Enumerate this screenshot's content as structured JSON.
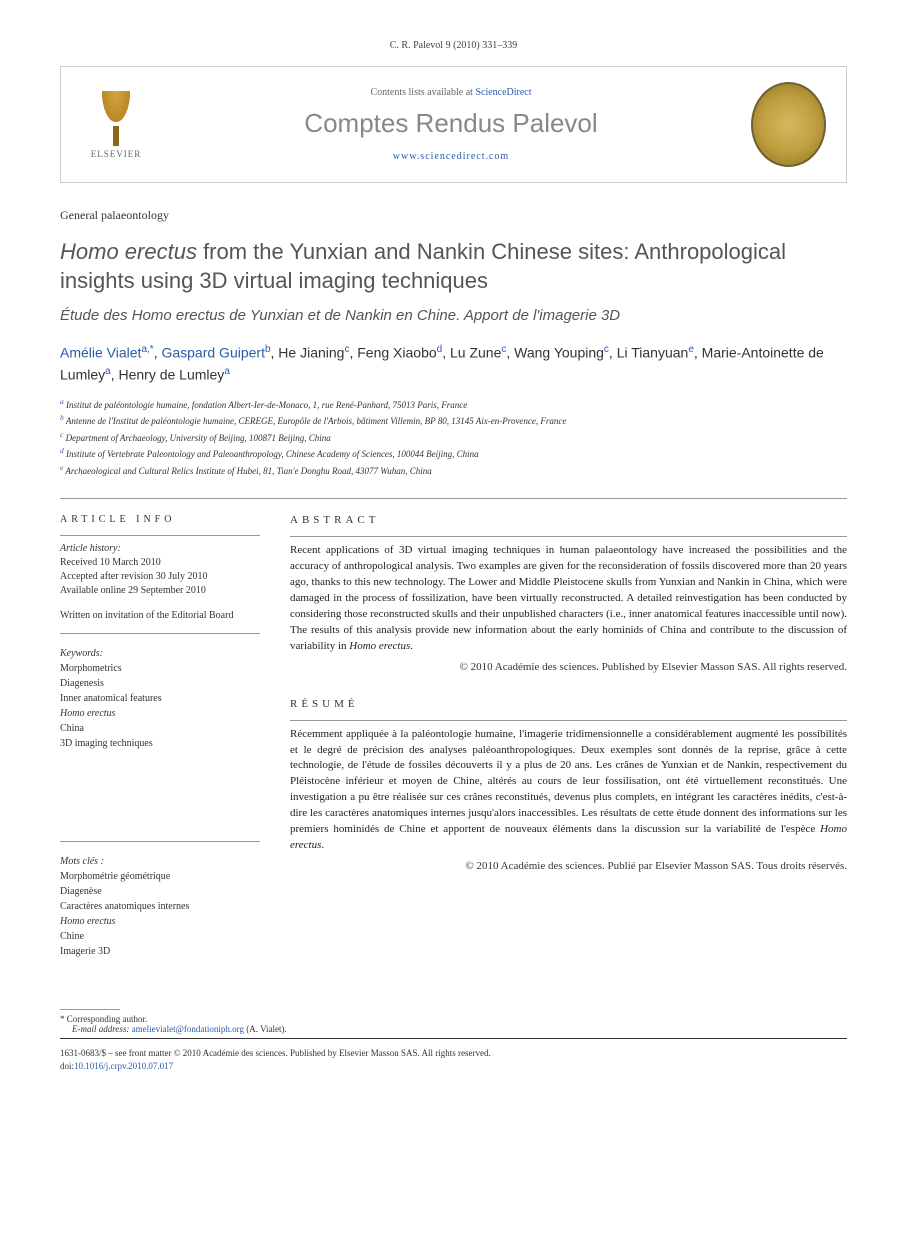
{
  "citation": "C. R. Palevol 9 (2010) 331–339",
  "banner": {
    "contents_prefix": "Contents lists available at ",
    "contents_link": "ScienceDirect",
    "journal_name": "Comptes Rendus Palevol",
    "journal_url": "www.sciencedirect.com",
    "elsevier_label": "ELSEVIER"
  },
  "section_label": "General palaeontology",
  "title_pre": "Homo erectus",
  "title_post": " from the Yunxian and Nankin Chinese sites: Anthropological insights using 3D virtual imaging techniques",
  "subtitle": "Étude des Homo erectus de Yunxian et de Nankin en Chine. Apport de l'imagerie 3D",
  "authors_html": "Amélie Vialet",
  "author_list": [
    {
      "name": "Amélie Vialet",
      "sup": "a,*",
      "link": true
    },
    {
      "name": "Gaspard Guipert",
      "sup": "b",
      "link": true
    },
    {
      "name": "He Jianing",
      "sup": "c",
      "link": false
    },
    {
      "name": "Feng Xiaobo",
      "sup": "d",
      "link": false
    },
    {
      "name": "Lu Zune",
      "sup": "c",
      "link": false
    },
    {
      "name": "Wang Youping",
      "sup": "c",
      "link": false
    },
    {
      "name": "Li Tianyuan",
      "sup": "e",
      "link": false
    },
    {
      "name": "Marie-Antoinette de Lumley",
      "sup": "a",
      "link": false
    },
    {
      "name": "Henry de Lumley",
      "sup": "a",
      "link": false
    }
  ],
  "affiliations": [
    {
      "sup": "a",
      "text": "Institut de paléontologie humaine, fondation Albert-Ier-de-Monaco, 1, rue René-Panhard, 75013 Paris, France"
    },
    {
      "sup": "b",
      "text": "Antenne de l'Institut de paléontologie humaine, CEREGE, Europôle de l'Arbois, bâtiment Villemin, BP 80, 13145 Aix-en-Provence, France"
    },
    {
      "sup": "c",
      "text": "Department of Archaeology, University of Beijing, 100871 Beijing, China"
    },
    {
      "sup": "d",
      "text": "Institute of Vertebrate Paleontology and Paleoanthropology, Chinese Academy of Sciences, 100044 Beijing, China"
    },
    {
      "sup": "e",
      "text": "Archaeological and Cultural Relics Institute of Hubei, 81, Tian'e Donghu Road, 43077 Wuhan, China"
    }
  ],
  "article_info": {
    "heading": "ARTICLE INFO",
    "history_label": "Article history:",
    "received": "Received 10 March 2010",
    "accepted": "Accepted after revision 30 July 2010",
    "online": "Available online 29 September 2010",
    "invitation": "Written on invitation of the Editorial Board"
  },
  "keywords_en": {
    "label": "Keywords:",
    "items": [
      "Morphometrics",
      "Diagenesis",
      "Inner anatomical features",
      "Homo erectus",
      "China",
      "3D imaging techniques"
    ]
  },
  "keywords_fr": {
    "label": "Mots clés :",
    "items": [
      "Morphométrie géométrique",
      "Diagenèse",
      "Caractères anatomiques internes",
      "Homo erectus",
      "Chine",
      "Imagerie 3D"
    ]
  },
  "abstract": {
    "heading": "ABSTRACT",
    "text": "Recent applications of 3D virtual imaging techniques in human palaeontology have increased the possibilities and the accuracy of anthropological analysis. Two examples are given for the reconsideration of fossils discovered more than 20 years ago, thanks to this new technology. The Lower and Middle Pleistocene skulls from Yunxian and Nankin in China, which were damaged in the process of fossilization, have been virtually reconstructed. A detailed reinvestigation has been conducted by considering those reconstructed skulls and their unpublished characters (i.e., inner anatomical features inaccessible until now). The results of this analysis provide new information about the early hominids of China and contribute to the discussion of variability in ",
    "text_italic": "Homo erectus",
    "text_end": ".",
    "copyright": "© 2010 Académie des sciences. Published by Elsevier Masson SAS. All rights reserved."
  },
  "resume": {
    "heading": "RÉSUMÉ",
    "text": "Récemment appliquée à la paléontologie humaine, l'imagerie tridimensionnelle a considérablement augmenté les possibilités et le degré de précision des analyses paléoanthropologiques. Deux exemples sont donnés de la reprise, grâce à cette technologie, de l'étude de fossiles découverts il y a plus de 20 ans. Les crânes de Yunxian et de Nankin, respectivement du Pléistocène inférieur et moyen de Chine, altérés au cours de leur fossilisation, ont été virtuellement reconstitués. Une investigation a pu être réalisée sur ces crânes reconstitués, devenus plus complets, en intégrant les caractères inédits, c'est-à-dire les caractères anatomiques internes jusqu'alors inaccessibles. Les résultats de cette étude donnent des informations sur les premiers hominidés de Chine et apportent de nouveaux éléments dans la discussion sur la variabilité de l'espèce ",
    "text_italic": "Homo erectus",
    "text_end": ".",
    "copyright": "© 2010 Académie des sciences. Publié par Elsevier Masson SAS. Tous droits réservés."
  },
  "corresponding": {
    "asterisk": "*",
    "label": "Corresponding author.",
    "email_label": "E-mail address:",
    "email": "amelievialet@fondationiph.org",
    "email_name": "(A. Vialet)."
  },
  "footer": {
    "issn": "1631-0683/$ – see front matter © 2010 Académie des sciences. Published by Elsevier Masson SAS. All rights reserved.",
    "doi_label": "doi:",
    "doi": "10.1016/j.crpv.2010.07.017"
  }
}
